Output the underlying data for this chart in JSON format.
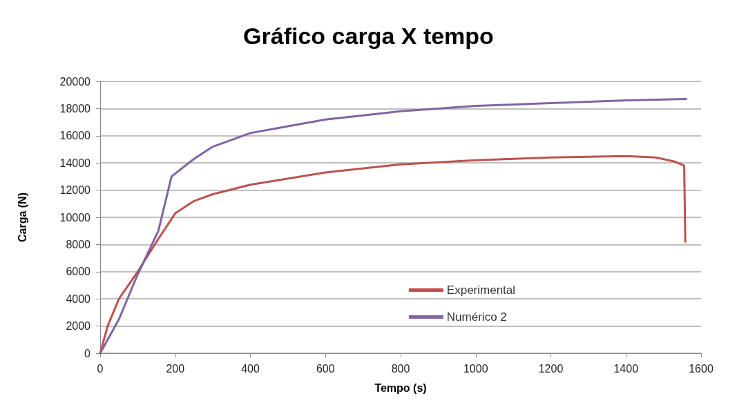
{
  "chart_data": {
    "type": "line",
    "title": "Gráfico carga X tempo",
    "xlabel": "Tempo (s)",
    "ylabel": "Carga (N)",
    "xlim": [
      0,
      1600
    ],
    "xticks": [
      0,
      200,
      400,
      600,
      800,
      1000,
      1200,
      1400,
      1600
    ],
    "ylim": [
      0,
      20000
    ],
    "yticks": [
      0,
      2000,
      4000,
      6000,
      8000,
      10000,
      12000,
      14000,
      16000,
      18000,
      20000
    ],
    "grid": "y",
    "legend": "bottom",
    "marker": "none",
    "line_style": "solid",
    "series": [
      {
        "name": "Experimental",
        "color": "#c0504d",
        "x": [
          0,
          20,
          50,
          100,
          150,
          200,
          250,
          300,
          400,
          600,
          800,
          1000,
          1200,
          1400,
          1480,
          1530,
          1555,
          1558
        ],
        "values": [
          0,
          2000,
          4000,
          6000,
          8200,
          10300,
          11200,
          11700,
          12400,
          13300,
          13900,
          14200,
          14400,
          14500,
          14400,
          14100,
          13800,
          8200
        ]
      },
      {
        "name": "Numérico 2",
        "color": "#8064a2",
        "x": [
          0,
          50,
          100,
          155,
          190,
          250,
          300,
          400,
          500,
          600,
          800,
          1000,
          1200,
          1400,
          1560
        ],
        "values": [
          0,
          2500,
          5800,
          9000,
          13000,
          14300,
          15200,
          16200,
          16700,
          17200,
          17800,
          18200,
          18400,
          18600,
          18700
        ]
      }
    ]
  }
}
